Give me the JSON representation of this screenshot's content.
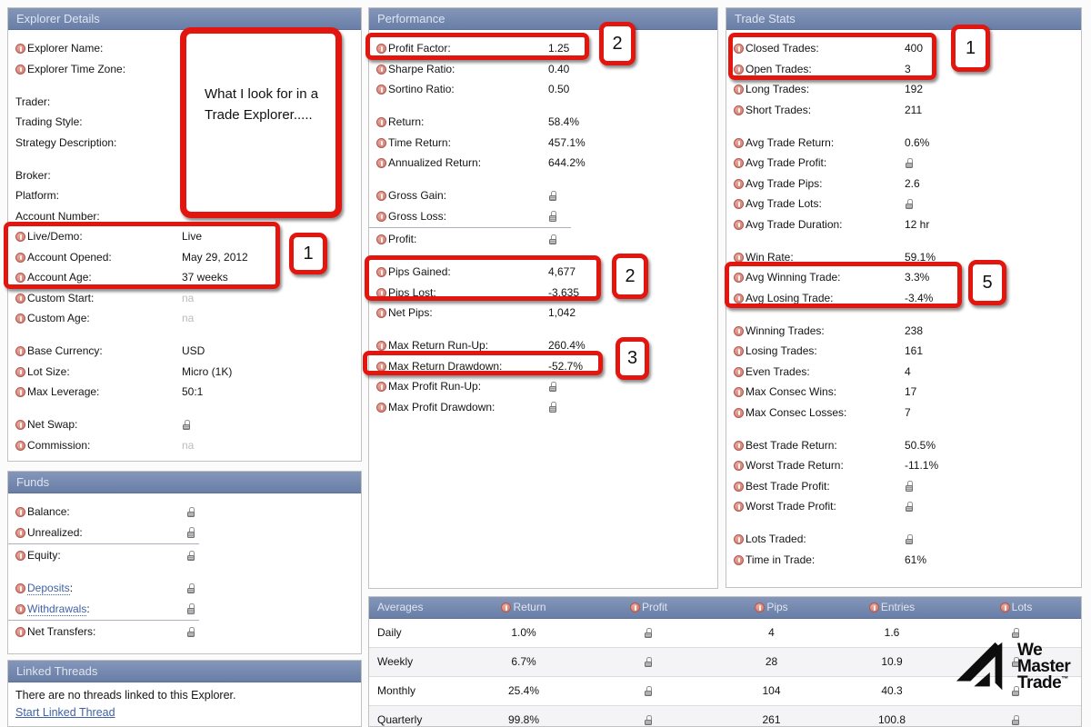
{
  "colors": {
    "panel_header_bg": "#6f84ac",
    "annotation_red": "#e3150f",
    "link_blue": "#3f62a5",
    "info_icon": "#cf7a6e",
    "lock_gray": "#9b9b9b",
    "muted_value": "#bcbcbc"
  },
  "panels": {
    "explorer": {
      "title": "Explorer Details",
      "rows": [
        {
          "label": "Explorer Name:",
          "info": true
        },
        {
          "label": "Explorer Time Zone:",
          "info": true
        },
        {
          "label": "Trader:",
          "gap": true
        },
        {
          "label": "Trading Style:"
        },
        {
          "label": "Strategy Description:"
        },
        {
          "label": "Broker:",
          "gap": true
        },
        {
          "label": "Platform:"
        },
        {
          "label": "Account Number:"
        },
        {
          "label": "Live/Demo:",
          "info": true,
          "value": "Live"
        },
        {
          "label": "Account Opened:",
          "info": true,
          "value": "May 29, 2012"
        },
        {
          "label": "Account Age:",
          "info": true,
          "value": "37 weeks"
        },
        {
          "label": "Custom Start:",
          "info": true,
          "value": "na",
          "muted": true
        },
        {
          "label": "Custom Age:",
          "info": true,
          "value": "na",
          "muted": true
        },
        {
          "label": "Base Currency:",
          "info": true,
          "value": "USD",
          "gap": true
        },
        {
          "label": "Lot Size:",
          "info": true,
          "value": "Micro (1K)"
        },
        {
          "label": "Max Leverage:",
          "info": true,
          "value": "50:1"
        },
        {
          "label": "Net Swap:",
          "info": true,
          "lock": true,
          "gap": true
        },
        {
          "label": "Commission:",
          "info": true,
          "value": "na",
          "muted": true
        }
      ]
    },
    "funds": {
      "title": "Funds",
      "rows": [
        {
          "label": "Balance:",
          "info": true,
          "lock": true
        },
        {
          "label": "Unrealized:",
          "info": true,
          "lock": true,
          "rule": true
        },
        {
          "label": "Equity:",
          "info": true,
          "lock": true
        },
        {
          "label": "Deposits",
          "info": true,
          "lock": true,
          "link": true,
          "gap": true
        },
        {
          "label": "Withdrawals",
          "info": true,
          "lock": true,
          "link": true,
          "rule": true
        },
        {
          "label": "Net Transfers:",
          "info": true,
          "lock": true
        }
      ]
    },
    "linked": {
      "title": "Linked Threads",
      "message": "There are no threads linked to this Explorer.",
      "link_label": "Start Linked Thread"
    },
    "performance": {
      "title": "Performance",
      "rows": [
        {
          "label": "Profit Factor:",
          "info": true,
          "value": "1.25"
        },
        {
          "label": "Sharpe Ratio:",
          "info": true,
          "value": "0.40"
        },
        {
          "label": "Sortino Ratio:",
          "info": true,
          "value": "0.50"
        },
        {
          "label": "Return:",
          "info": true,
          "value": "58.4%",
          "gap": true
        },
        {
          "label": "Time Return:",
          "info": true,
          "value": "457.1%"
        },
        {
          "label": "Annualized Return:",
          "info": true,
          "value": "644.2%"
        },
        {
          "label": "Gross Gain:",
          "info": true,
          "lock": true,
          "gap": true
        },
        {
          "label": "Gross Loss:",
          "info": true,
          "lock": true,
          "rule": true
        },
        {
          "label": "Profit:",
          "info": true,
          "lock": true
        },
        {
          "label": "Pips Gained:",
          "info": true,
          "value": "4,677",
          "gap": true
        },
        {
          "label": "Pips Lost:",
          "info": true,
          "value": "-3,635"
        },
        {
          "label": "Net Pips:",
          "info": true,
          "value": "1,042"
        },
        {
          "label": "Max Return Run-Up:",
          "info": true,
          "value": "260.4%",
          "gap": true
        },
        {
          "label": "Max Return Drawdown:",
          "info": true,
          "value": "-52.7%"
        },
        {
          "label": "Max Profit Run-Up:",
          "info": true,
          "lock": true
        },
        {
          "label": "Max Profit Drawdown:",
          "info": true,
          "lock": true
        }
      ]
    },
    "trade_stats": {
      "title": "Trade Stats",
      "rows": [
        {
          "label": "Closed Trades:",
          "info": true,
          "value": "400"
        },
        {
          "label": "Open Trades:",
          "info": true,
          "value": "3"
        },
        {
          "label": "Long Trades:",
          "info": true,
          "value": "192"
        },
        {
          "label": "Short Trades:",
          "info": true,
          "value": "211"
        },
        {
          "label": "Avg Trade Return:",
          "info": true,
          "value": "0.6%",
          "gap": true
        },
        {
          "label": "Avg Trade Profit:",
          "info": true,
          "lock": true
        },
        {
          "label": "Avg Trade Pips:",
          "info": true,
          "value": "2.6"
        },
        {
          "label": "Avg Trade Lots:",
          "info": true,
          "lock": true
        },
        {
          "label": "Avg Trade Duration:",
          "info": true,
          "value": "12 hr"
        },
        {
          "label": "Win Rate:",
          "info": true,
          "value": "59.1%",
          "gap": true
        },
        {
          "label": "Avg Winning Trade:",
          "info": true,
          "value": "3.3%"
        },
        {
          "label": "Avg Losing Trade:",
          "info": true,
          "value": "-3.4%"
        },
        {
          "label": "Winning Trades:",
          "info": true,
          "value": "238",
          "gap": true
        },
        {
          "label": "Losing Trades:",
          "info": true,
          "value": "161"
        },
        {
          "label": "Even Trades:",
          "info": true,
          "value": "4"
        },
        {
          "label": "Max Consec Wins:",
          "info": true,
          "value": "17"
        },
        {
          "label": "Max Consec Losses:",
          "info": true,
          "value": "7"
        },
        {
          "label": "Best Trade Return:",
          "info": true,
          "value": "50.5%",
          "gap": true
        },
        {
          "label": "Worst Trade Return:",
          "info": true,
          "value": "-11.1%"
        },
        {
          "label": "Best Trade Profit:",
          "info": true,
          "lock": true
        },
        {
          "label": "Worst Trade Profit:",
          "info": true,
          "lock": true
        },
        {
          "label": "Lots Traded:",
          "info": true,
          "lock": true,
          "gap": true
        },
        {
          "label": "Time in Trade:",
          "info": true,
          "value": "61%"
        }
      ]
    }
  },
  "averages": {
    "title": "Averages",
    "columns": [
      {
        "label": "Return",
        "info": true
      },
      {
        "label": "Profit",
        "info": true
      },
      {
        "label": "Pips",
        "info": true
      },
      {
        "label": "Entries",
        "info": true
      },
      {
        "label": "Lots",
        "info": true
      }
    ],
    "rows": [
      {
        "label": "Daily",
        "cells": [
          {
            "text": "1.0%"
          },
          {
            "lock": true
          },
          {
            "text": "4"
          },
          {
            "text": "1.6"
          },
          {
            "lock": true
          }
        ]
      },
      {
        "label": "Weekly",
        "cells": [
          {
            "text": "6.7%"
          },
          {
            "lock": true
          },
          {
            "text": "28"
          },
          {
            "text": "10.9"
          },
          {
            "lock": true
          }
        ]
      },
      {
        "label": "Monthly",
        "cells": [
          {
            "text": "25.4%"
          },
          {
            "lock": true
          },
          {
            "text": "104"
          },
          {
            "text": "40.3"
          },
          {
            "lock": true
          }
        ]
      },
      {
        "label": "Quarterly",
        "cells": [
          {
            "text": "99.8%"
          },
          {
            "lock": true
          },
          {
            "text": "261"
          },
          {
            "text": "100.8"
          },
          {
            "lock": true
          }
        ]
      }
    ]
  },
  "callouts": {
    "note_text": "What I look for in a Trade Explorer.....",
    "live_demo": "1",
    "profit_factor": "2",
    "pips": "2",
    "drawdown": "3",
    "closed_trades": "1",
    "avg_win_loss": "5"
  },
  "logo": {
    "word1": "We",
    "word2": "Master",
    "word3": "Trade",
    "trademark": "™"
  }
}
